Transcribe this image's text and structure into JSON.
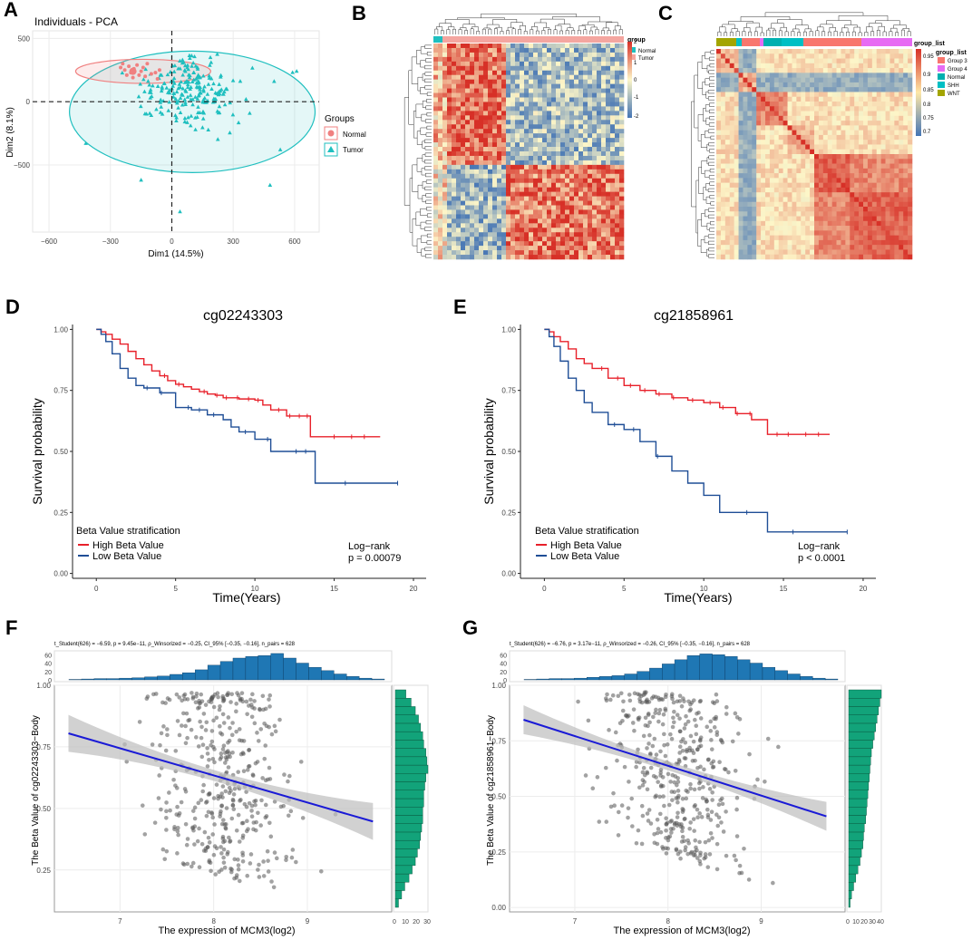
{
  "figure": {
    "panel_letters": [
      "A",
      "B",
      "C",
      "D",
      "E",
      "F",
      "G"
    ]
  },
  "colors": {
    "normal": "#f08080",
    "tumor": "#1fbfbf",
    "high": "#e8202a",
    "low": "#1f4e96",
    "hist_top": "#1f77b4",
    "hist_right": "#12a37a",
    "point": "#555555",
    "reg_line": "#1a1ad6",
    "ci_band": "#bdbdbd",
    "heat_high": "#d73027",
    "heat_mid": "#fdf6c8",
    "heat_low": "#4575b4",
    "group3": "#f8766d",
    "group4": "#e76bf3",
    "shh": "#00bfc4",
    "wnt": "#a3a500",
    "normal_c": "#00b0b0"
  },
  "chart_data": [
    {
      "panel": "A",
      "type": "scatter",
      "title": "Individuals - PCA",
      "xlabel": "Dim1 (14.5%)",
      "ylabel": "Dim2 (8.1%)",
      "xlim": [
        -680,
        720
      ],
      "ylim": [
        -1030,
        560
      ],
      "xticks": [
        -600,
        -300,
        0,
        300,
        600
      ],
      "yticks": [
        500,
        0,
        -500
      ],
      "legend": {
        "title": "Groups",
        "entries": [
          "Normal",
          "Tumor"
        ]
      },
      "series": [
        {
          "name": "Normal",
          "marker": "circle",
          "ellipse": {
            "cx": -140,
            "cy": 240,
            "rx": 330,
            "ry": 95
          },
          "x": [
            -230,
            -220,
            -210,
            -200,
            -190,
            -185,
            -160,
            -150,
            -130,
            -120,
            -100,
            -80,
            -70,
            -60,
            -250,
            -240,
            -170,
            -140
          ],
          "y": [
            250,
            210,
            280,
            230,
            190,
            260,
            210,
            240,
            200,
            300,
            220,
            230,
            180,
            250,
            270,
            300,
            290,
            270
          ]
        },
        {
          "name": "Tumor",
          "marker": "triangle",
          "ellipse": {
            "cx": 100,
            "cy": -80,
            "rx": 600,
            "ry": 480
          }
        }
      ]
    },
    {
      "panel": "B",
      "type": "heatmap",
      "legend_title": "group",
      "legend_entries": [
        "Normal",
        "Tumor"
      ],
      "colorbar_ticks": [
        "2",
        "1",
        "0",
        "-1",
        "-2"
      ]
    },
    {
      "panel": "C",
      "type": "heatmap",
      "legend_title": "group_list",
      "legend_entries": [
        "Group 3",
        "Group 4",
        "Normal",
        "SHH",
        "WNT"
      ],
      "colorbar_ticks": [
        "0.95",
        "0.9",
        "0.85",
        "0.8",
        "0.75",
        "0.7"
      ]
    },
    {
      "panel": "D",
      "type": "line",
      "title": "cg02243303",
      "xlabel": "Time(Years)",
      "ylabel": "Survival probability",
      "xlim": [
        -1.5,
        20.8
      ],
      "ylim": [
        -0.02,
        1.02
      ],
      "xticks": [
        0,
        5,
        10,
        15,
        20
      ],
      "yticks": [
        "0.00",
        "0.25",
        "0.50",
        "0.75",
        "1.00"
      ],
      "legend_title": "Beta Value stratification",
      "stat": [
        "Log−rank",
        "p = 0.00079"
      ],
      "series": [
        {
          "name": "High Beta Value",
          "x": [
            0,
            0.3,
            0.6,
            1,
            1.5,
            2,
            2.5,
            3,
            3.5,
            4,
            4.5,
            5,
            5.5,
            6,
            6.5,
            7,
            7.5,
            8,
            9,
            10,
            10.5,
            11,
            12,
            13.5,
            15,
            17.9
          ],
          "y": [
            1,
            0.99,
            0.98,
            0.96,
            0.94,
            0.91,
            0.88,
            0.855,
            0.83,
            0.81,
            0.79,
            0.775,
            0.765,
            0.755,
            0.745,
            0.735,
            0.73,
            0.72,
            0.715,
            0.71,
            0.69,
            0.67,
            0.645,
            0.56,
            0.56,
            0.56
          ],
          "censor_x": [
            4.3,
            5.2,
            6.8,
            7.6,
            8.2,
            8.9,
            9.6,
            10.2,
            11.5,
            12.2,
            12.8,
            13.3,
            15.0,
            16.1,
            16.9
          ]
        },
        {
          "name": "Low Beta Value",
          "x": [
            0,
            0.3,
            0.6,
            1,
            1.5,
            2,
            2.5,
            3,
            4,
            5,
            6,
            7,
            8,
            8.5,
            9,
            10,
            11,
            12,
            13.8,
            15,
            19
          ],
          "y": [
            1,
            0.98,
            0.95,
            0.9,
            0.84,
            0.8,
            0.77,
            0.76,
            0.74,
            0.68,
            0.67,
            0.65,
            0.63,
            0.6,
            0.58,
            0.55,
            0.5,
            0.5,
            0.37,
            0.37,
            0.37
          ],
          "censor_x": [
            3.2,
            4.1,
            5.8,
            6.5,
            7.4,
            9.4,
            10.8,
            12.6,
            13.2,
            15.7,
            19
          ]
        }
      ]
    },
    {
      "panel": "E",
      "type": "line",
      "title": "cg21858961",
      "xlabel": "Time(Years)",
      "ylabel": "Survival probability",
      "xlim": [
        -1.5,
        20.8
      ],
      "ylim": [
        -0.02,
        1.02
      ],
      "xticks": [
        0,
        5,
        10,
        15,
        20
      ],
      "yticks": [
        "0.00",
        "0.25",
        "0.50",
        "0.75",
        "1.00"
      ],
      "legend_title": "Beta Value stratification",
      "stat": [
        "Log−rank",
        "p < 0.0001"
      ],
      "series": [
        {
          "name": "High Beta Value",
          "x": [
            0,
            0.3,
            0.6,
            1,
            1.5,
            2,
            2.5,
            3,
            4,
            5,
            6,
            7,
            8,
            9,
            10,
            11,
            12,
            13,
            14,
            15,
            17.9
          ],
          "y": [
            1,
            0.99,
            0.97,
            0.95,
            0.92,
            0.88,
            0.86,
            0.84,
            0.8,
            0.77,
            0.75,
            0.735,
            0.72,
            0.71,
            0.7,
            0.68,
            0.655,
            0.63,
            0.57,
            0.57,
            0.57
          ],
          "censor_x": [
            3.6,
            4.6,
            5.4,
            6.3,
            7.2,
            8.1,
            9.3,
            10.4,
            11.2,
            12.1,
            12.9,
            14.6,
            15.3,
            16.4,
            17.2
          ]
        },
        {
          "name": "Low Beta Value",
          "x": [
            0,
            0.3,
            0.6,
            1,
            1.5,
            2,
            2.5,
            3,
            4,
            5,
            6,
            7,
            8,
            9,
            10,
            11,
            14,
            19
          ],
          "y": [
            1,
            0.97,
            0.93,
            0.87,
            0.8,
            0.75,
            0.7,
            0.66,
            0.61,
            0.59,
            0.54,
            0.48,
            0.42,
            0.37,
            0.32,
            0.25,
            0.17,
            0.17
          ],
          "censor_x": [
            4.4,
            5.6,
            7.1,
            12.7,
            15.6,
            19
          ]
        }
      ]
    },
    {
      "panel": "F",
      "type": "scatter",
      "subtitle": "t_Student(626) = −6.59, p = 9.45e−11, ρ_Winsorized = −0.25, CI_95% [−0.35, −0.16], n_pairs = 628",
      "xlabel": "The expression of MCM3(log2)",
      "ylabel": "The Beta Value of cg02243303−Body",
      "xlim": [
        6.3,
        9.9
      ],
      "ylim": [
        0.08,
        1.0
      ],
      "xticks": [
        7,
        8,
        9
      ],
      "yticks": [
        "0.25",
        "0.50",
        "0.75",
        "1.00"
      ],
      "regression": {
        "x": [
          6.45,
          9.7
        ],
        "y": [
          0.805,
          0.447
        ],
        "ci_halfwidth_ends": 0.075,
        "ci_halfwidth_mid": 0.022
      },
      "hist_top": {
        "yticks": [
          0,
          20,
          40,
          60
        ],
        "counts": [
          1,
          2,
          3,
          3,
          4,
          5,
          7,
          9,
          13,
          17,
          24,
          35,
          44,
          52,
          56,
          58,
          63,
          52,
          40,
          30,
          22,
          14,
          8,
          4,
          2
        ]
      },
      "hist_right": {
        "xticks": [
          "0",
          "10",
          "20",
          "30"
        ],
        "counts": [
          3,
          6,
          9,
          13,
          16,
          19,
          21,
          23,
          24,
          25,
          26,
          26,
          27,
          27,
          28,
          29,
          31,
          30,
          29,
          27,
          26,
          24,
          22,
          19,
          15,
          10
        ]
      }
    },
    {
      "panel": "G",
      "type": "scatter",
      "subtitle": "t_Student(626) = −6.76, p = 3.17e−11, ρ_Winsorized = −0.26, CI_95% [−0.35, −0.16], n_pairs = 628",
      "xlabel": "The expression of MCM3(log2)",
      "ylabel": "The Beta Value of cg21858961−Body",
      "xlim": [
        6.3,
        9.9
      ],
      "ylim": [
        -0.02,
        1.0
      ],
      "xticks": [
        7,
        8,
        9
      ],
      "yticks": [
        "0.00",
        "0.25",
        "0.50",
        "0.75",
        "1.00"
      ],
      "regression": {
        "x": [
          6.45,
          9.7
        ],
        "y": [
          0.845,
          0.41
        ],
        "ci_halfwidth_ends": 0.065,
        "ci_halfwidth_mid": 0.02
      },
      "hist_top": {
        "yticks": [
          0,
          20,
          40,
          60
        ],
        "counts": [
          1,
          2,
          3,
          3,
          4,
          6,
          8,
          10,
          14,
          20,
          28,
          38,
          48,
          58,
          62,
          60,
          56,
          48,
          40,
          30,
          22,
          14,
          8,
          4,
          2
        ]
      },
      "hist_right": {
        "xticks": [
          "0",
          "10",
          "20",
          "30",
          "40"
        ],
        "counts": [
          2,
          4,
          7,
          10,
          13,
          16,
          18,
          20,
          21,
          22,
          24,
          25,
          26,
          27,
          28,
          29,
          30,
          31,
          32,
          34,
          36,
          38,
          40,
          42,
          44,
          46
        ]
      }
    }
  ]
}
